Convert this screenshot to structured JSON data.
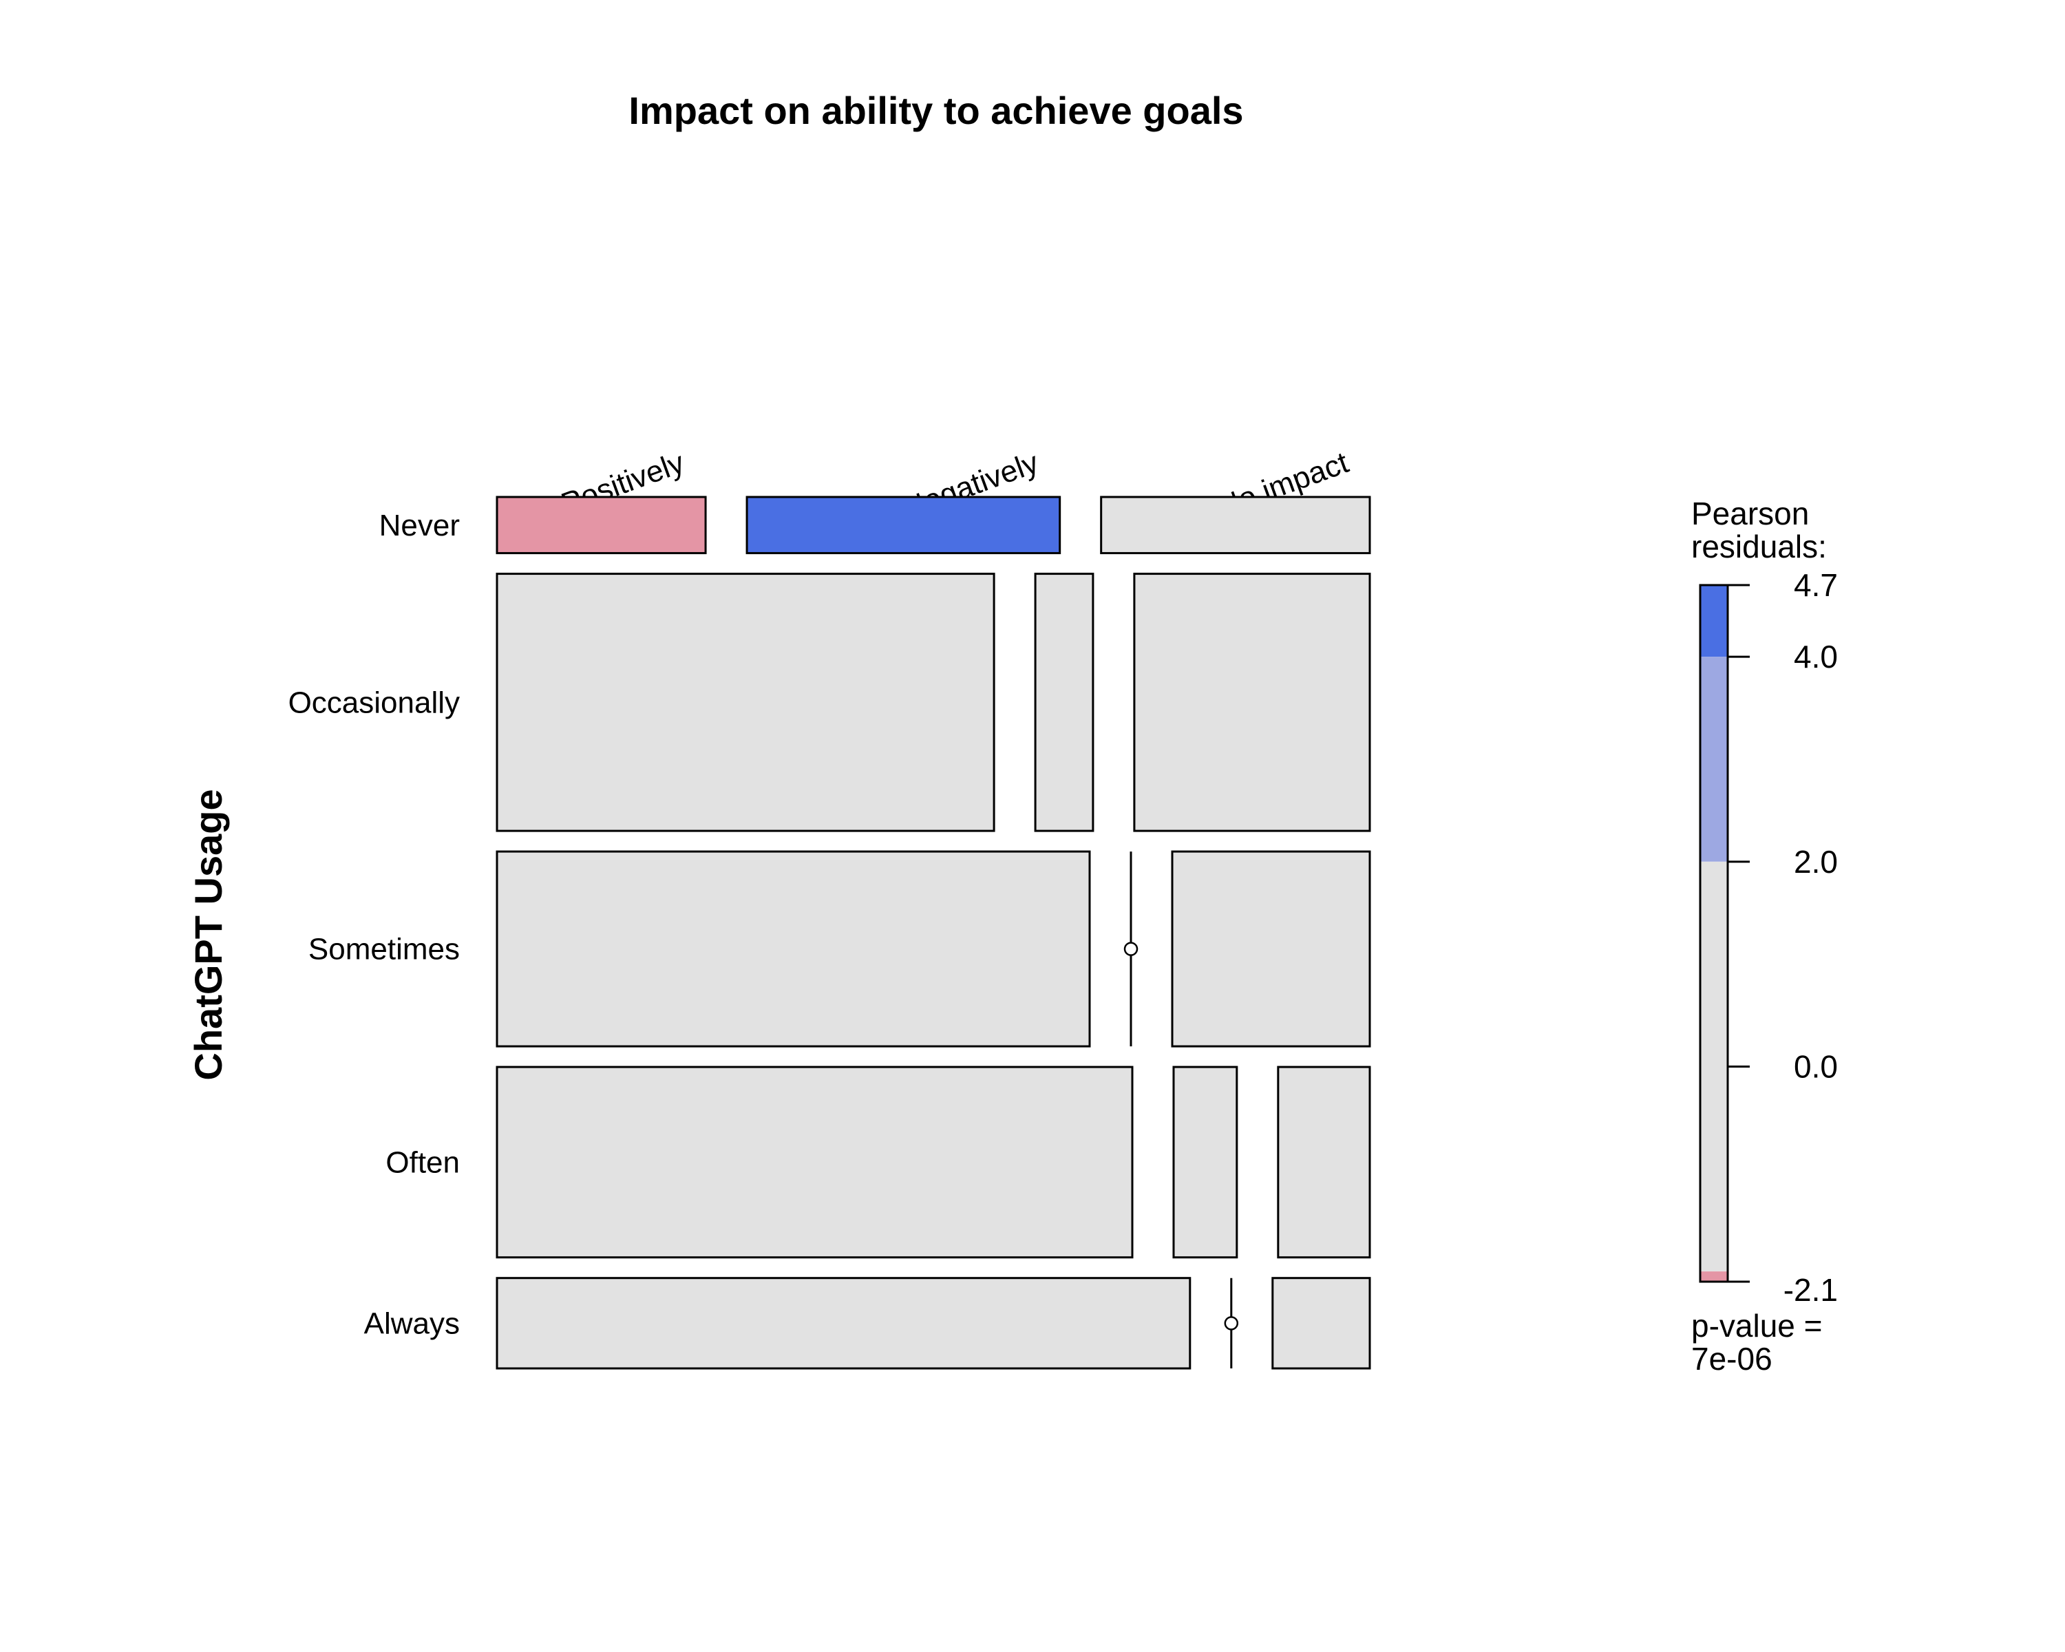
{
  "chart_data": {
    "type": "mosaic",
    "title": "Impact on ability to achieve goals",
    "ylabel": "ChatGPT Usage",
    "columns": [
      "Positively",
      "Negatively",
      "No impact"
    ],
    "rows": [
      "Never",
      "Occasionally",
      "Sometimes",
      "Often",
      "Always"
    ],
    "row_proportions": [
      0.064,
      0.293,
      0.222,
      0.217,
      0.103
    ],
    "cell_proportions": [
      [
        0.264,
        0.396,
        0.34
      ],
      [
        0.629,
        0.073,
        0.298
      ],
      [
        0.75,
        0.0,
        0.25
      ],
      [
        0.804,
        0.08,
        0.116
      ],
      [
        0.877,
        0.0,
        0.123
      ]
    ],
    "residual_colors": [
      [
        "#E495A5",
        "#4A6FE3",
        "#E2E2E2"
      ],
      [
        "#E2E2E2",
        "#E2E2E2",
        "#E2E2E2"
      ],
      [
        "#E2E2E2",
        "#E2E2E2",
        "#E2E2E2"
      ],
      [
        "#E2E2E2",
        "#E2E2E2",
        "#E2E2E2"
      ],
      [
        "#E2E2E2",
        "#E2E2E2",
        "#E2E2E2"
      ]
    ],
    "legend": {
      "title_line1": "Pearson",
      "title_line2": "residuals:",
      "range": [
        -2.1,
        4.7
      ],
      "ticks": [
        "4.7",
        "4.0",
        "2.0",
        "0.0",
        "-2.1"
      ],
      "tick_values": [
        4.7,
        4.0,
        2.0,
        0.0,
        -2.1
      ],
      "bands": [
        {
          "from": 4.0,
          "to": 4.7,
          "color": "#4A6FE3"
        },
        {
          "from": 2.0,
          "to": 4.0,
          "color": "#9DA8E2"
        },
        {
          "from": -2.0,
          "to": 2.0,
          "color": "#E2E2E2"
        },
        {
          "from": -2.1,
          "to": -2.0,
          "color": "#E495A5"
        }
      ],
      "pvalue_line1": "p-value =",
      "pvalue_line2": "7e-06"
    }
  }
}
